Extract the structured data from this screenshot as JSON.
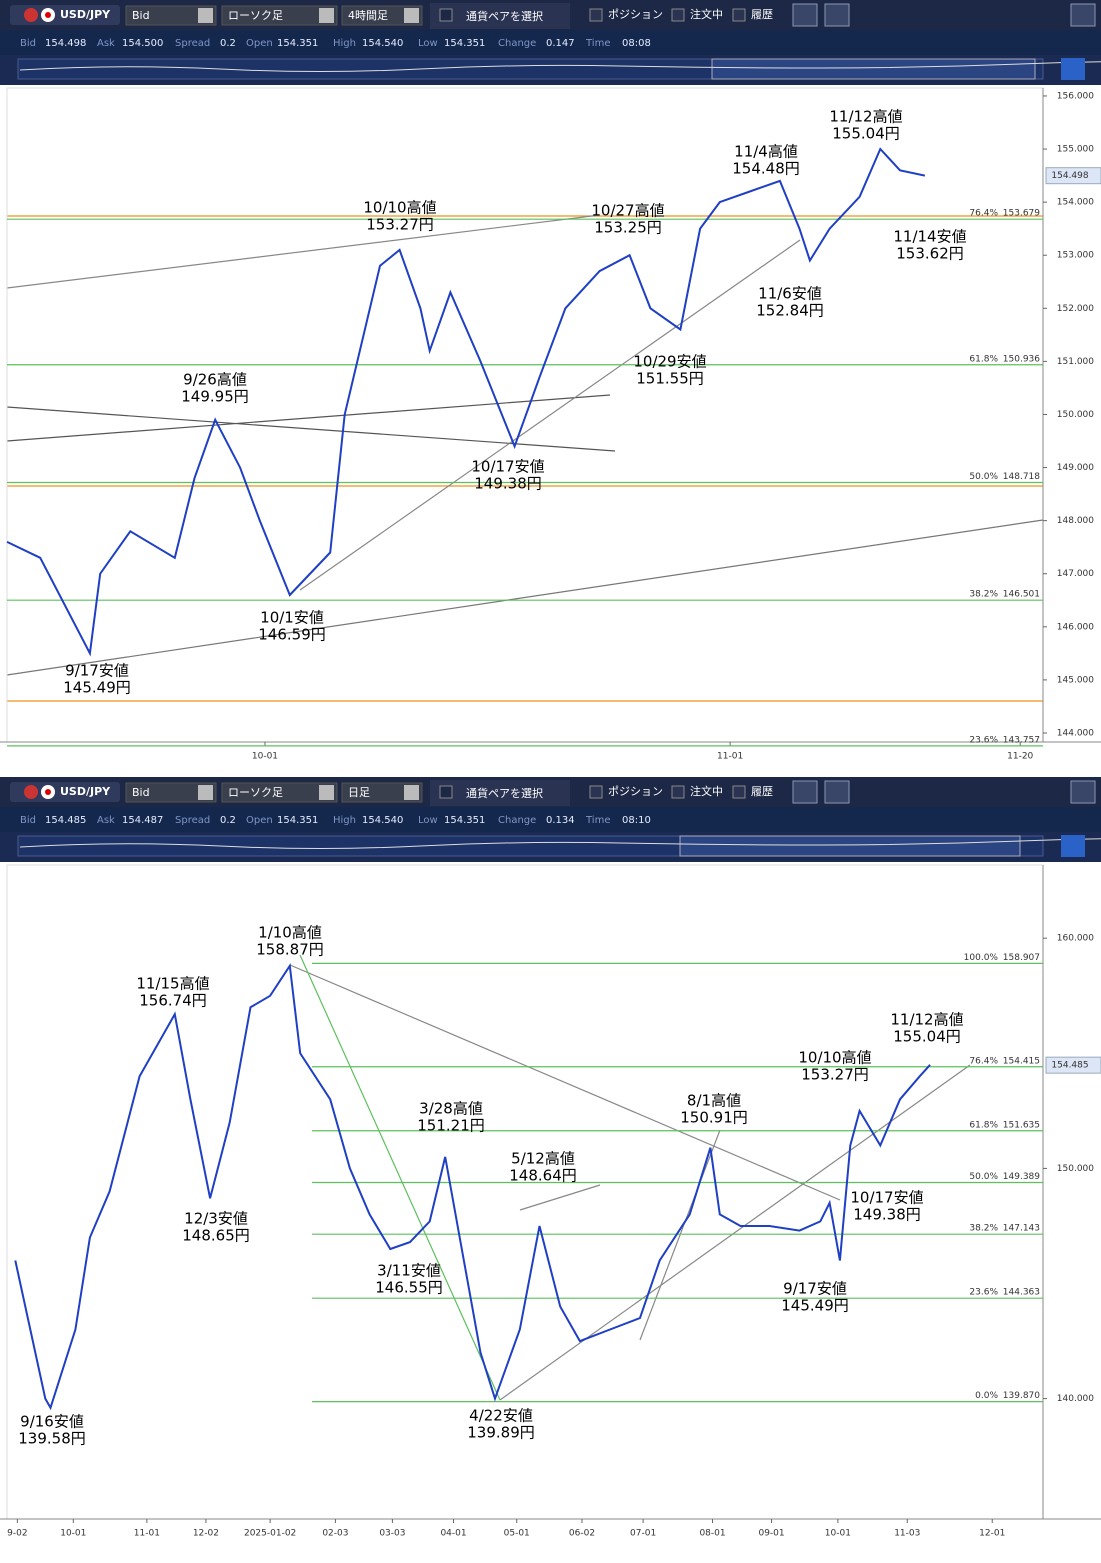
{
  "panels": [
    {
      "toolbar": {
        "pair": "USD/JPY",
        "price_type": "Bid",
        "chart_type": "ローソク足",
        "timeframe": "4時間足",
        "pair_select": "通貨ペアを選択",
        "positions": "ポジション",
        "orders": "注文中",
        "history": "履歴"
      },
      "info": [
        {
          "label": "Bid",
          "value": "154.498"
        },
        {
          "label": "Ask",
          "value": "154.500"
        },
        {
          "label": "Spread",
          "value": "0.2"
        },
        {
          "label": "Open",
          "value": "154.351"
        },
        {
          "label": "High",
          "value": "154.540"
        },
        {
          "label": "Low",
          "value": "154.351"
        },
        {
          "label": "Change",
          "value": "0.147"
        },
        {
          "label": "Time",
          "value": "08:08"
        }
      ]
    },
    {
      "toolbar": {
        "pair": "USD/JPY",
        "price_type": "Bid",
        "chart_type": "ローソク足",
        "timeframe": "日足",
        "pair_select": "通貨ペアを選択",
        "positions": "ポジション",
        "orders": "注文中",
        "history": "履歴"
      },
      "info": [
        {
          "label": "Bid",
          "value": "154.485"
        },
        {
          "label": "Ask",
          "value": "154.487"
        },
        {
          "label": "Spread",
          "value": "0.2"
        },
        {
          "label": "Open",
          "value": "154.351"
        },
        {
          "label": "High",
          "value": "154.540"
        },
        {
          "label": "Low",
          "value": "154.351"
        },
        {
          "label": "Change",
          "value": "0.134"
        },
        {
          "label": "Time",
          "value": "08:10"
        }
      ]
    }
  ],
  "chart_data": [
    {
      "type": "line",
      "color": "#1f3fc4",
      "x": [
        0,
        3.2,
        8.0,
        9.0,
        11.9,
        16.2,
        18.1,
        20.1,
        22.5,
        24.4,
        27.3,
        31.2,
        32.6,
        36.0,
        37.9,
        39.9,
        40.8,
        42.8,
        45.7,
        49.0,
        51.4,
        53.9,
        57.2,
        60.1,
        62.1,
        65.0,
        66.9,
        68.8,
        71.7,
        74.6,
        76.5,
        77.5,
        79.4,
        82.3,
        84.3,
        86.2,
        88.6
      ],
      "values": [
        147.6,
        147.3,
        145.5,
        147.0,
        147.8,
        147.3,
        148.8,
        149.9,
        149.0,
        148.0,
        146.6,
        147.4,
        150.0,
        152.8,
        153.1,
        152.0,
        151.2,
        152.3,
        151.0,
        149.4,
        150.7,
        152.0,
        152.7,
        153.0,
        152.0,
        151.6,
        153.5,
        154.0,
        154.2,
        154.4,
        153.5,
        152.9,
        153.5,
        154.1,
        155.0,
        154.6,
        154.5
      ],
      "xlim": [
        0,
        100
      ],
      "ylim": [
        143.83,
        156.15
      ],
      "xticks": [
        {
          "value": 24.9,
          "label": "10-01"
        },
        {
          "value": 69.8,
          "label": "11-01"
        },
        {
          "value": 97.8,
          "label": "11-20"
        }
      ],
      "yticks": [
        {
          "value": 144,
          "label": "144.000"
        },
        {
          "value": 145,
          "label": "145.000"
        },
        {
          "value": 146,
          "label": "146.000"
        },
        {
          "value": 147,
          "label": "147.000"
        },
        {
          "value": 148,
          "label": "148.000"
        },
        {
          "value": 149,
          "label": "149.000"
        },
        {
          "value": 150,
          "label": "150.000"
        },
        {
          "value": 151,
          "label": "151.000"
        },
        {
          "value": 152,
          "label": "152.000"
        },
        {
          "value": 153,
          "label": "153.000"
        },
        {
          "value": 154,
          "label": "154.000"
        },
        {
          "value": 155,
          "label": "155.000"
        },
        {
          "value": 156,
          "label": "156.000"
        }
      ],
      "current_price": {
        "value": 154.498,
        "label": "154.498"
      },
      "fib_levels": [
        {
          "ratio": "76.4%",
          "value": 153.679,
          "label": "153.679"
        },
        {
          "ratio": "61.8%",
          "value": 150.936,
          "label": "150.936"
        },
        {
          "ratio": "50.0%",
          "value": 148.718,
          "label": "148.718"
        },
        {
          "ratio": "38.2%",
          "value": 146.501,
          "label": "146.501"
        },
        {
          "ratio": "23.6%",
          "value": 143.757,
          "label": "143.757"
        }
      ],
      "annotations": [
        {
          "label": "9/26高値",
          "price": "149.95円"
        },
        {
          "label": "10/10高値",
          "price": "153.27円"
        },
        {
          "label": "10/27高値",
          "price": "153.25円"
        },
        {
          "label": "11/4高値",
          "price": "154.48円"
        },
        {
          "label": "11/12高値",
          "price": "155.04円"
        },
        {
          "label": "11/14安値",
          "price": "153.62円"
        },
        {
          "label": "11/6安値",
          "price": "152.84円"
        },
        {
          "label": "10/29安値",
          "price": "151.55円"
        },
        {
          "label": "10/17安値",
          "price": "149.38円"
        },
        {
          "label": "10/1安値",
          "price": "146.59円"
        },
        {
          "label": "9/17安値",
          "price": "145.49円"
        }
      ]
    },
    {
      "type": "line",
      "color": "#1f3fc4",
      "x": [
        0.8,
        3.7,
        4.2,
        6.6,
        8.0,
        9.9,
        12.8,
        16.2,
        17.7,
        19.6,
        21.5,
        23.5,
        25.4,
        27.3,
        28.3,
        31.2,
        33.1,
        35.0,
        37.0,
        38.9,
        40.8,
        42.3,
        43.7,
        45.7,
        47.1,
        49.5,
        51.4,
        53.4,
        55.3,
        58.2,
        61.1,
        63.0,
        65.9,
        67.9,
        68.8,
        70.8,
        73.6,
        76.5,
        78.5,
        79.4,
        80.4,
        81.4,
        82.3,
        84.3,
        86.2,
        88.1,
        89.1
      ],
      "values": [
        146,
        140,
        139.6,
        143,
        147,
        149,
        154,
        156.7,
        153,
        148.7,
        152,
        157,
        157.5,
        158.8,
        155,
        153,
        150,
        148,
        146.5,
        146.8,
        147.7,
        150.5,
        147,
        142,
        140,
        143,
        147.5,
        144,
        142.5,
        143,
        143.5,
        146,
        148,
        150.9,
        148,
        147.5,
        147.5,
        147.3,
        147.7,
        148.5,
        146,
        151,
        152.5,
        151,
        153,
        154,
        154.5
      ],
      "xlim": [
        0,
        100
      ],
      "ylim": [
        134.77,
        163.18
      ],
      "xticks": [
        {
          "value": 1.0,
          "label": "9-02"
        },
        {
          "value": 6.4,
          "label": "10-01"
        },
        {
          "value": 13.5,
          "label": "11-01"
        },
        {
          "value": 19.2,
          "label": "12-02"
        },
        {
          "value": 25.4,
          "label": "2025-01-02"
        },
        {
          "value": 31.7,
          "label": "02-03"
        },
        {
          "value": 37.2,
          "label": "03-03"
        },
        {
          "value": 43.1,
          "label": "04-01"
        },
        {
          "value": 49.2,
          "label": "05-01"
        },
        {
          "value": 55.5,
          "label": "06-02"
        },
        {
          "value": 61.4,
          "label": "07-01"
        },
        {
          "value": 68.1,
          "label": "08-01"
        },
        {
          "value": 73.8,
          "label": "09-01"
        },
        {
          "value": 80.2,
          "label": "10-01"
        },
        {
          "value": 86.9,
          "label": "11-03"
        },
        {
          "value": 95.1,
          "label": "12-01"
        }
      ],
      "yticks": [
        {
          "value": 140,
          "label": "140.000"
        },
        {
          "value": 150,
          "label": "150.000"
        },
        {
          "value": 160,
          "label": "160.000"
        }
      ],
      "current_price": {
        "value": 154.485,
        "label": "154.485"
      },
      "fib_levels": [
        {
          "ratio": "100.0%",
          "value": 158.907,
          "label": "158.907"
        },
        {
          "ratio": "76.4%",
          "value": 154.415,
          "label": "154.415"
        },
        {
          "ratio": "61.8%",
          "value": 151.635,
          "label": "151.635"
        },
        {
          "ratio": "50.0%",
          "value": 149.389,
          "label": "149.389"
        },
        {
          "ratio": "38.2%",
          "value": 147.143,
          "label": "147.143"
        },
        {
          "ratio": "23.6%",
          "value": 144.363,
          "label": "144.363"
        },
        {
          "ratio": "0.0%",
          "value": 139.87,
          "label": "139.870"
        }
      ],
      "annotations": [
        {
          "label": "1/10高値",
          "price": "158.87円"
        },
        {
          "label": "11/15高値",
          "price": "156.74円"
        },
        {
          "label": "12/3安値",
          "price": "148.65円"
        },
        {
          "label": "3/28高値",
          "price": "151.21円"
        },
        {
          "label": "3/11安値",
          "price": "146.55円"
        },
        {
          "label": "5/12高値",
          "price": "148.64円"
        },
        {
          "label": "4/22安値",
          "price": "139.89円"
        },
        {
          "label": "8/1高値",
          "price": "150.91円"
        },
        {
          "label": "10/10高値",
          "price": "153.27円"
        },
        {
          "label": "11/12高値",
          "price": "155.04円"
        },
        {
          "label": "10/17安値",
          "price": "149.38円"
        },
        {
          "label": "9/17安値",
          "price": "145.49円"
        },
        {
          "label": "9/16安値",
          "price": "139.58円"
        }
      ]
    }
  ]
}
